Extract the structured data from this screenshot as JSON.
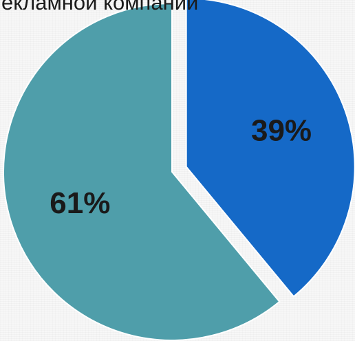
{
  "chart_data": {
    "type": "pie",
    "title": "екламной компании",
    "slices": [
      {
        "label": "39%",
        "value": 39,
        "color": "#1569c7",
        "exploded": true
      },
      {
        "label": "61%",
        "value": 61,
        "color": "#4f9eaa",
        "exploded": false
      }
    ],
    "start_angle_deg": 0,
    "direction": "clockwise"
  }
}
